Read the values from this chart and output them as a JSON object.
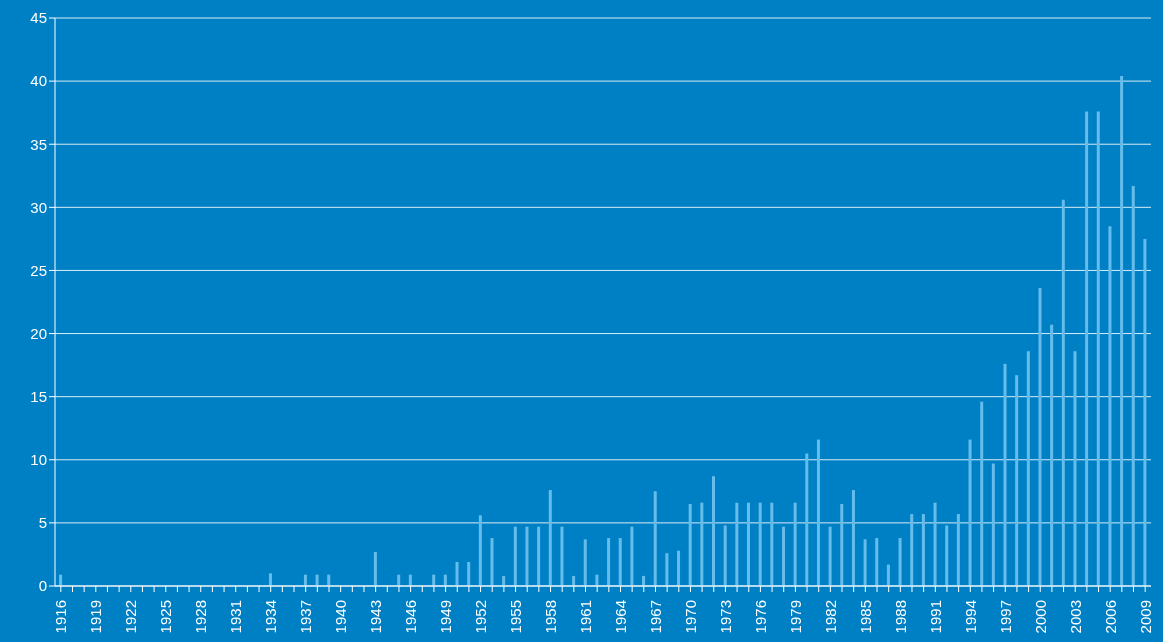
{
  "chart_data": {
    "type": "bar",
    "categories": [
      "1916",
      null,
      null,
      "1919",
      null,
      null,
      "1922",
      null,
      null,
      "1925",
      null,
      null,
      "1928",
      null,
      null,
      "1931",
      null,
      null,
      "1934",
      null,
      null,
      "1937",
      null,
      null,
      "1940",
      null,
      null,
      "1943",
      null,
      null,
      "1946",
      null,
      null,
      "1949",
      null,
      null,
      "1952",
      null,
      null,
      "1955",
      null,
      null,
      "1958",
      null,
      null,
      "1961",
      null,
      null,
      "1964",
      null,
      null,
      "1967",
      null,
      null,
      "1970",
      null,
      null,
      "1973",
      null,
      null,
      "1976",
      null,
      null,
      "1979",
      null,
      null,
      "1982",
      null,
      null,
      "1985",
      null,
      null,
      "1988",
      null,
      null,
      "1991",
      null,
      null,
      "1994",
      null,
      null,
      "1997",
      null,
      null,
      "2000",
      null,
      null,
      "2003",
      null,
      null,
      "2006",
      null,
      null,
      "2009"
    ],
    "values": [
      0.9,
      0,
      0,
      0,
      0,
      0,
      0,
      0,
      0,
      0,
      0,
      0,
      0,
      0,
      0,
      0,
      0,
      0,
      1.0,
      0,
      0,
      0.9,
      0.9,
      0.9,
      0,
      0,
      0,
      2.7,
      0,
      0.9,
      0.9,
      0,
      0.9,
      0.9,
      1.9,
      1.9,
      5.6,
      3.8,
      0.8,
      4.7,
      4.7,
      4.7,
      7.6,
      4.7,
      0.8,
      3.7,
      0.9,
      3.8,
      3.8,
      4.7,
      0.8,
      7.5,
      2.6,
      2.8,
      6.5,
      6.6,
      8.7,
      4.8,
      6.6,
      6.6,
      6.6,
      6.6,
      4.7,
      6.6,
      10.5,
      11.6,
      4.7,
      6.5,
      7.6,
      3.7,
      3.8,
      1.7,
      3.8,
      5.7,
      5.7,
      6.6,
      4.8,
      5.7,
      11.6,
      14.6,
      9.7,
      17.6,
      16.7,
      18.6,
      23.6,
      20.7,
      30.6,
      18.6,
      37.6,
      37.6,
      28.5,
      40.4,
      31.7,
      27.5
    ],
    "color": "#66bdec",
    "ylim": [
      0,
      45
    ],
    "yticks": [
      0,
      5,
      10,
      15,
      20,
      25,
      30,
      35,
      40,
      45
    ],
    "grid": "y"
  }
}
